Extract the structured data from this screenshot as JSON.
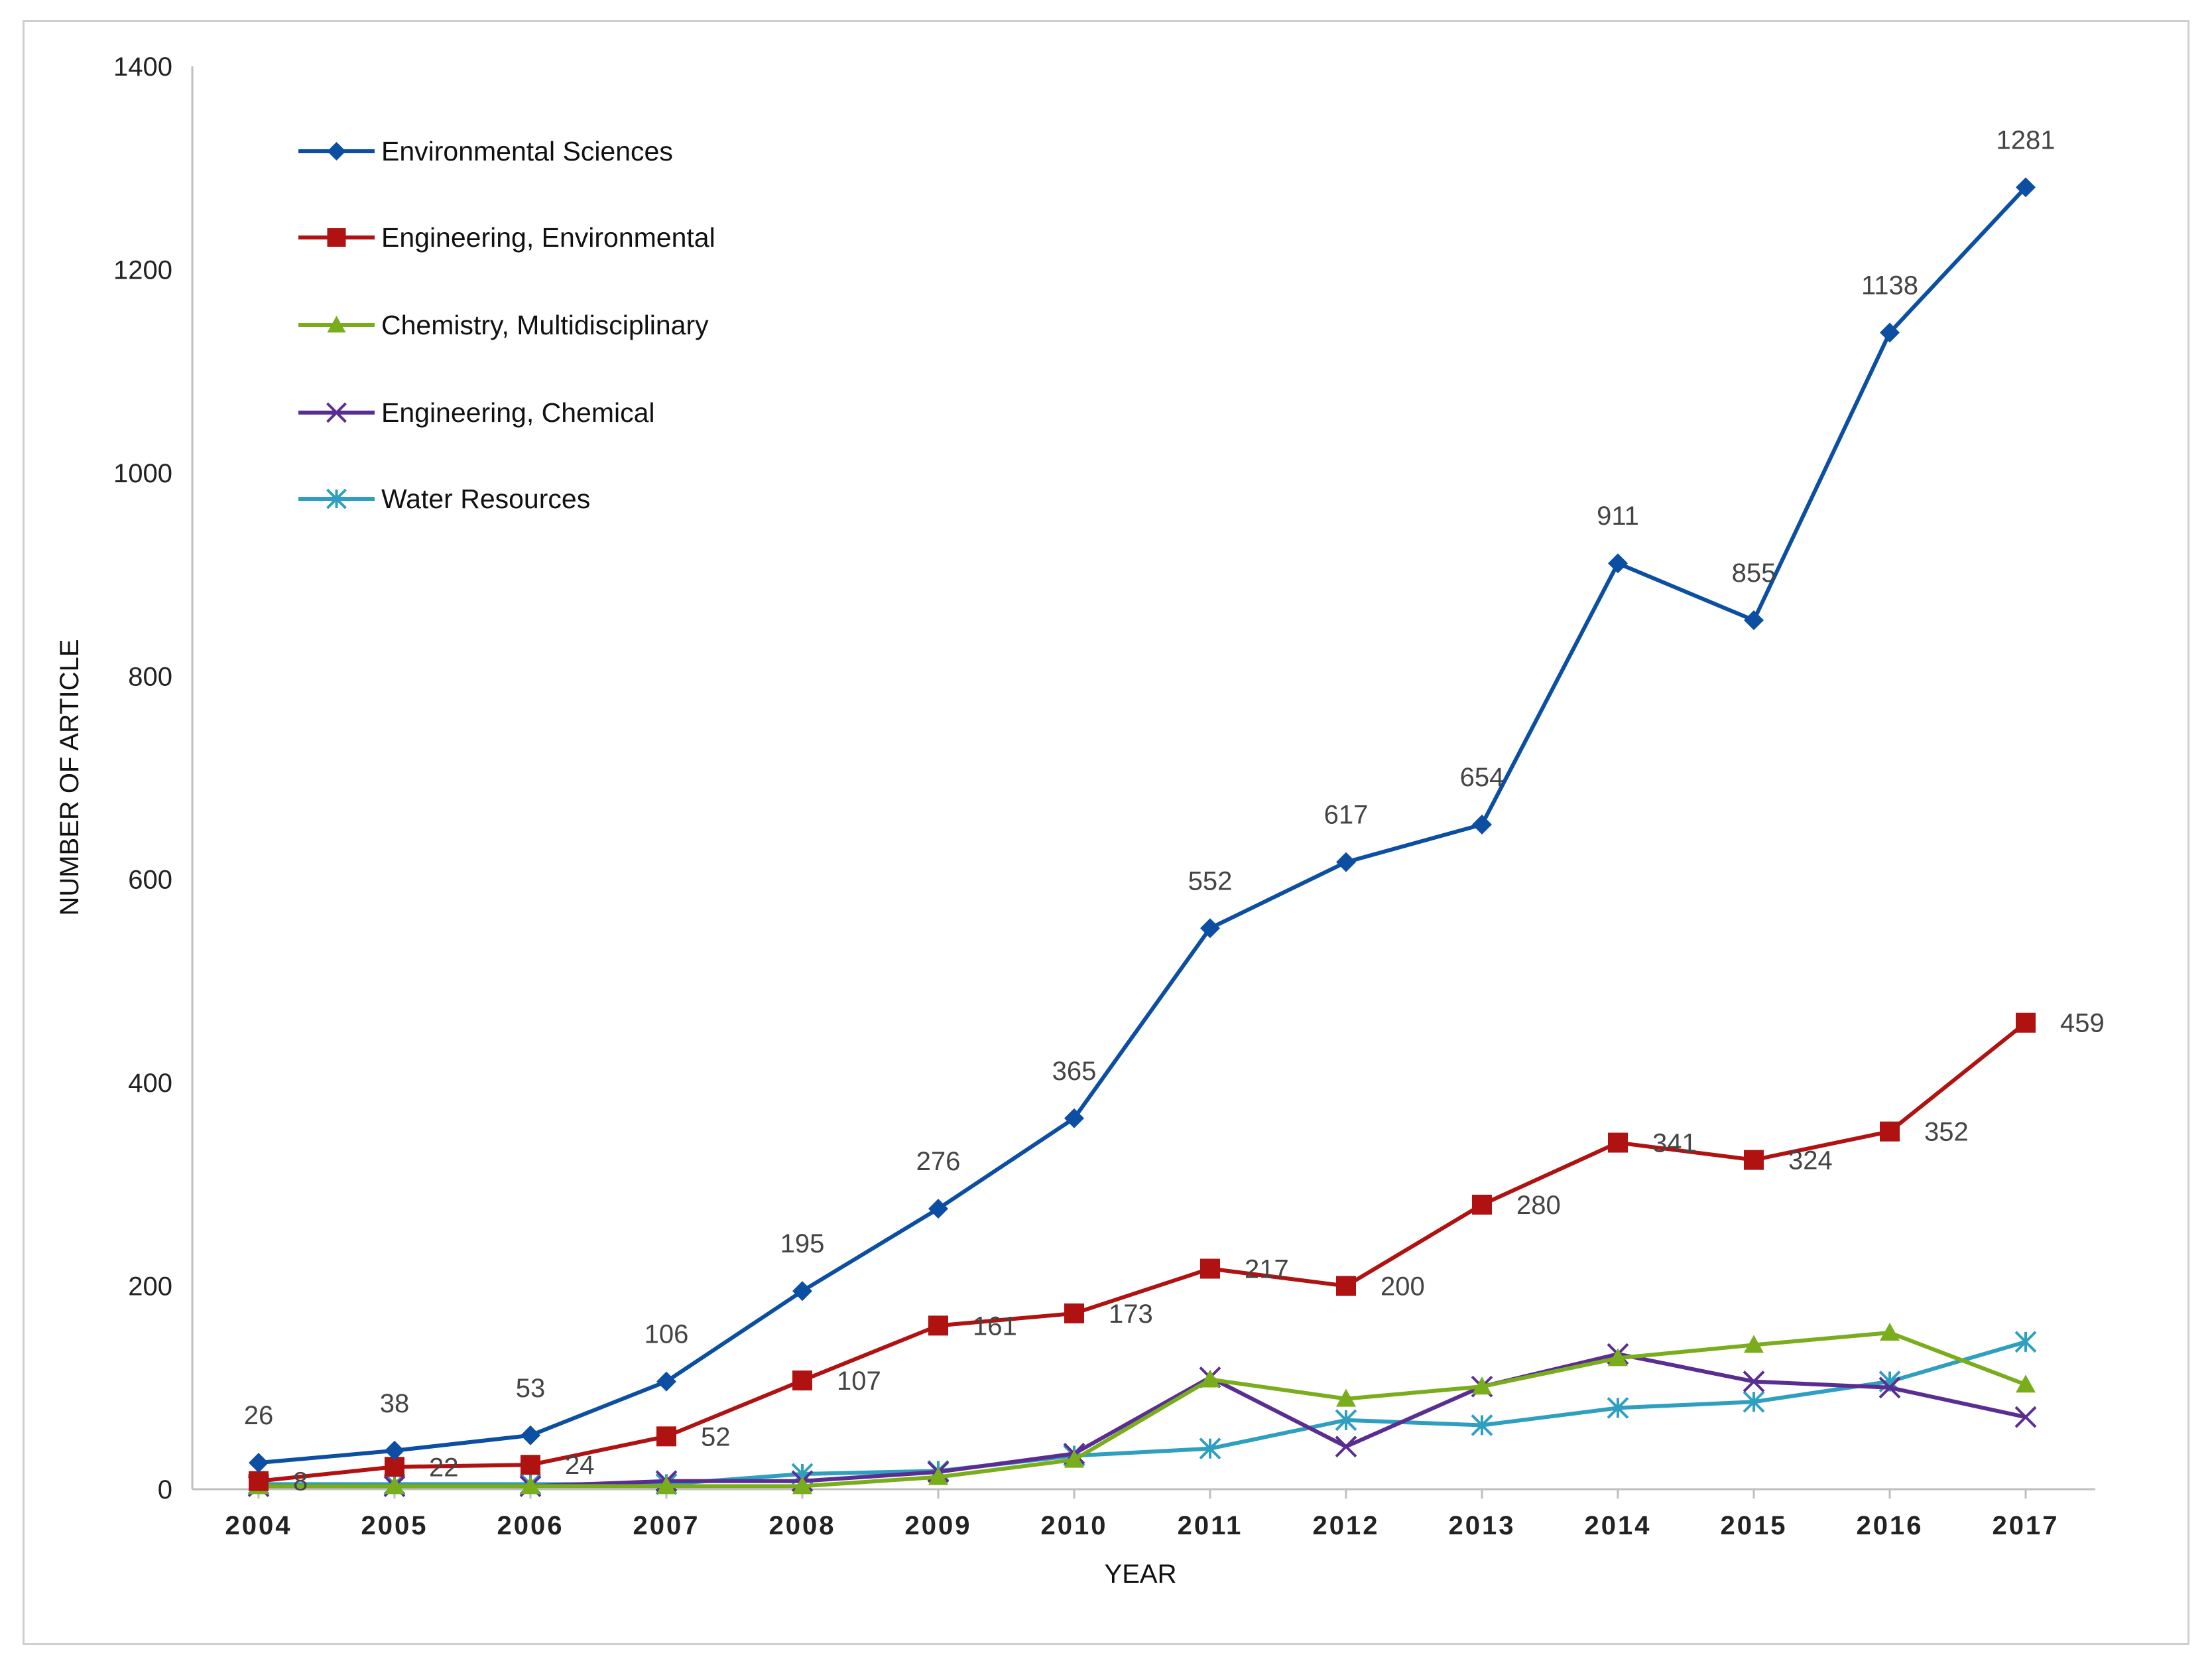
{
  "chart_data": {
    "type": "line",
    "title": "",
    "xlabel": "YEAR",
    "ylabel": "NUMBER OF ARTICLE",
    "ylim": [
      0,
      1400
    ],
    "yticks": [
      0,
      200,
      400,
      600,
      800,
      1000,
      1200,
      1400
    ],
    "categories": [
      "2004",
      "2005",
      "2006",
      "2007",
      "2008",
      "2009",
      "2010",
      "2011",
      "2012",
      "2013",
      "2014",
      "2015",
      "2016",
      "2017"
    ],
    "grid": false,
    "legend_position": "top-left",
    "series": [
      {
        "name": "Environmental Sciences",
        "color": "#0b4ea2",
        "marker": "diamond",
        "values": [
          26,
          38,
          53,
          106,
          195,
          276,
          365,
          552,
          617,
          654,
          911,
          855,
          1138,
          1281
        ],
        "labels": [
          "26",
          "38",
          "53",
          "106",
          "195",
          "276",
          "365",
          "552",
          "617",
          "654",
          "911",
          "855",
          "1138",
          "1281"
        ]
      },
      {
        "name": "Engineering, Environmental",
        "color": "#b01212",
        "marker": "square",
        "values": [
          8,
          22,
          24,
          52,
          107,
          161,
          173,
          217,
          200,
          280,
          341,
          324,
          352,
          459
        ],
        "labels": [
          "8",
          "22",
          "24",
          "52",
          "107",
          "161",
          "173",
          "217",
          "200",
          "280",
          "341",
          "324",
          "352",
          "459"
        ]
      },
      {
        "name": "Chemistry, Multidisciplinary",
        "color": "#7aad1c",
        "marker": "triangle",
        "values": [
          3,
          3,
          3,
          3,
          3,
          12,
          29,
          108,
          89,
          101,
          129,
          142,
          154,
          103
        ]
      },
      {
        "name": "Engineering, Chemical",
        "color": "#5a2e91",
        "marker": "x",
        "values": [
          3,
          3,
          3,
          8,
          8,
          17,
          35,
          110,
          42,
          101,
          133,
          106,
          100,
          71
        ]
      },
      {
        "name": "Water Resources",
        "color": "#2f9fc0",
        "marker": "asterisk",
        "values": [
          5,
          5,
          5,
          5,
          15,
          18,
          33,
          40,
          68,
          63,
          80,
          86,
          106,
          145
        ]
      }
    ]
  }
}
